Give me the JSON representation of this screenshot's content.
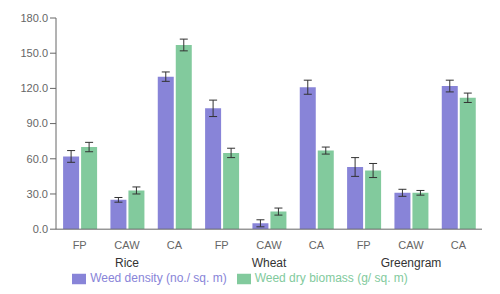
{
  "chart_data": {
    "type": "bar",
    "categories": [
      "FP",
      "CAW",
      "CA",
      "FP",
      "CAW",
      "CA",
      "FP",
      "CAW",
      "CA"
    ],
    "annotations": [
      "Rice",
      "Wheat",
      "Greengram"
    ],
    "series": [
      {
        "name": "Weed density (no./ sq. m)",
        "color": "#8884d8",
        "values": [
          62,
          25,
          130,
          103,
          5,
          121,
          53,
          31,
          122
        ],
        "errors": [
          5,
          2,
          4,
          7,
          3,
          6,
          8,
          3,
          5
        ]
      },
      {
        "name": "Weed dry biomass (g/ sq. m)",
        "color": "#82ca9d",
        "values": [
          70,
          33,
          157,
          65,
          15,
          67,
          50,
          31,
          112
        ],
        "errors": [
          4,
          3,
          5,
          4,
          3,
          3,
          6,
          2,
          4
        ]
      }
    ],
    "ylim": [
      0,
      180
    ],
    "yticks": [
      {
        "value": 0,
        "label": "0.0"
      },
      {
        "value": 30,
        "label": "30.0"
      },
      {
        "value": 60,
        "label": "60.0"
      },
      {
        "value": 90,
        "label": "90.0"
      },
      {
        "value": 120,
        "label": "120.0"
      },
      {
        "value": 150,
        "label": "150.0"
      },
      {
        "value": 180,
        "label": "180.0"
      }
    ],
    "grid": false,
    "legend": "bottom"
  }
}
